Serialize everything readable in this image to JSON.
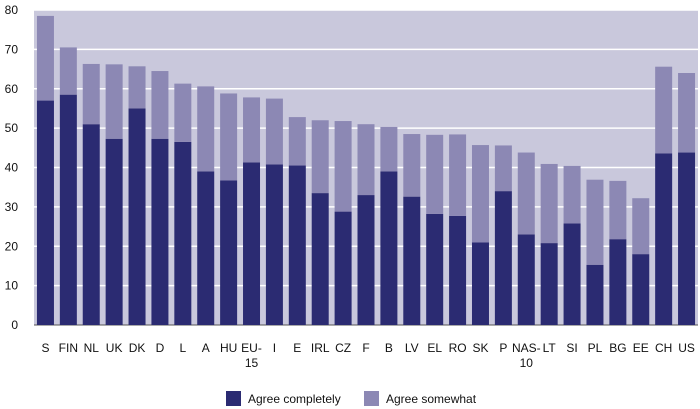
{
  "chart_data": {
    "type": "bar",
    "stacked": true,
    "categories": [
      "S",
      "FIN",
      "NL",
      "UK",
      "DK",
      "D",
      "L",
      "A",
      "HU",
      "EU-15",
      "I",
      "E",
      "IRL",
      "CZ",
      "F",
      "B",
      "LV",
      "EL",
      "RO",
      "SK",
      "P",
      "NAS-10",
      "LT",
      "SI",
      "PL",
      "BG",
      "EE",
      "CH",
      "US"
    ],
    "category_label_lines": [
      [
        "S"
      ],
      [
        "FIN"
      ],
      [
        "NL"
      ],
      [
        "UK"
      ],
      [
        "DK"
      ],
      [
        "D"
      ],
      [
        "L"
      ],
      [
        "A"
      ],
      [
        "HU"
      ],
      [
        "EU-",
        "15"
      ],
      [
        "I"
      ],
      [
        "E"
      ],
      [
        "IRL"
      ],
      [
        "CZ"
      ],
      [
        "F"
      ],
      [
        "B"
      ],
      [
        "LV"
      ],
      [
        "EL"
      ],
      [
        "RO"
      ],
      [
        "SK"
      ],
      [
        "P"
      ],
      [
        "NAS-",
        "10"
      ],
      [
        "LT"
      ],
      [
        "SI"
      ],
      [
        "PL"
      ],
      [
        "BG"
      ],
      [
        "EE"
      ],
      [
        "CH"
      ],
      [
        "US"
      ]
    ],
    "series": [
      {
        "name": "Agree completely",
        "color": "#2b2b72",
        "values": [
          57,
          58.5,
          51,
          47.3,
          55,
          47.3,
          46.5,
          39,
          36.7,
          41.3,
          40.8,
          40.5,
          33.5,
          28.8,
          33,
          39,
          32.6,
          28.2,
          27.7,
          21,
          34,
          23,
          20.8,
          25.8,
          15.3,
          21.8,
          18,
          43.6,
          43.8
        ]
      },
      {
        "name": "Agree somewhat",
        "color": "#8c88b4",
        "values": [
          21.5,
          12,
          15.3,
          18.9,
          10.7,
          17.2,
          14.8,
          21.6,
          22.1,
          16.5,
          16.7,
          12.3,
          18.5,
          23,
          18,
          11.3,
          15.9,
          20.1,
          20.7,
          24.7,
          11.6,
          20.8,
          20.1,
          14.6,
          21.6,
          14.8,
          14.2,
          22,
          20.2
        ]
      }
    ],
    "ylim": [
      0,
      80
    ],
    "yticks": [
      0,
      10,
      20,
      30,
      40,
      50,
      60,
      70,
      80
    ],
    "grid": true,
    "plot_background": "#c9c8dc",
    "grid_color": "#ffffff",
    "legend": "bottom-center",
    "title": "",
    "xlabel": "",
    "ylabel": ""
  }
}
